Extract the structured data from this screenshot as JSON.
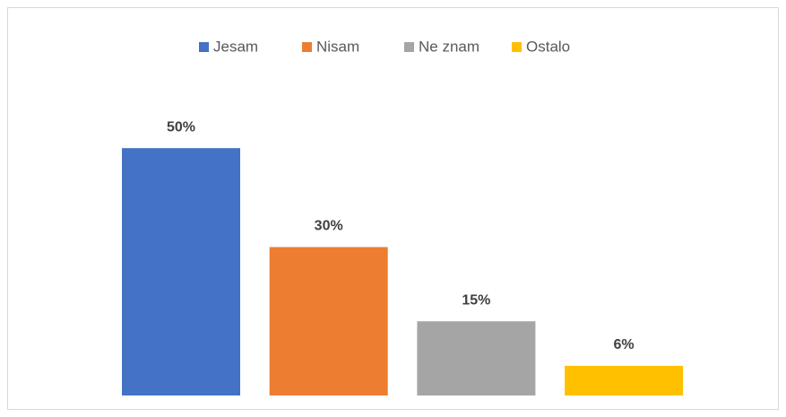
{
  "chart_data": {
    "type": "bar",
    "categories": [
      null
    ],
    "series": [
      {
        "name": "Jesam",
        "color": "#4472c4",
        "values": [
          50
        ],
        "value_labels": [
          "50%"
        ]
      },
      {
        "name": "Nisam",
        "color": "#ed7d31",
        "values": [
          30
        ],
        "value_labels": [
          "30%"
        ]
      },
      {
        "name": "Ne znam",
        "color": "#a5a5a5",
        "values": [
          15
        ],
        "value_labels": [
          "15%"
        ]
      },
      {
        "name": "Ostalo",
        "color": "#ffc000",
        "values": [
          6
        ],
        "value_labels": [
          "6%"
        ]
      }
    ],
    "ylim": [
      0,
      60
    ],
    "legend": "top"
  }
}
